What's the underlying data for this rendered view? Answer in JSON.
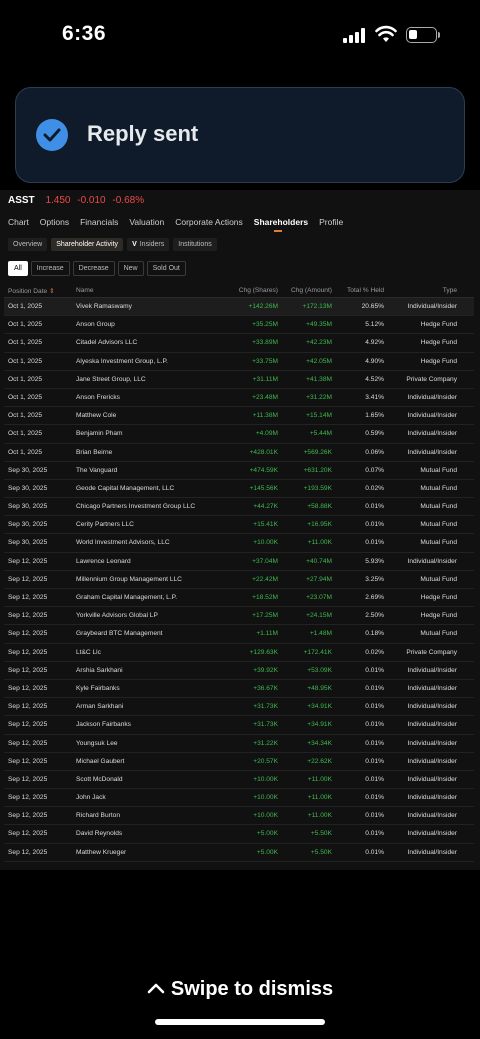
{
  "status_bar": {
    "time": "6:36"
  },
  "toast": {
    "text": "Reply sent"
  },
  "ticker": {
    "symbol": "ASST",
    "price": "1.450",
    "change": "-0.010",
    "change_pct": "-0.68%"
  },
  "main_tabs": [
    "Chart",
    "Options",
    "Financials",
    "Valuation",
    "Corporate Actions",
    "Shareholders",
    "Profile"
  ],
  "sub_tabs": {
    "overview": "Overview",
    "activity": "Shareholder Activity",
    "insiders": "Insiders",
    "insiders_badge": "V",
    "institutions": "Institutions"
  },
  "filters": [
    "All",
    "Increase",
    "Decrease",
    "New",
    "Sold Out"
  ],
  "table": {
    "headers": {
      "date": "Position Date",
      "date_sort": "⇕",
      "name": "Name",
      "shares": "Chg (Shares)",
      "amount": "Chg (Amount)",
      "held": "Total % Held",
      "type": "Type"
    },
    "rows": [
      {
        "date": "Oct 1, 2025",
        "name": "Vivek Ramaswamy",
        "shares": "+142.26M",
        "amount": "+172.13M",
        "held": "20.65%",
        "type": "Individual/Insider"
      },
      {
        "date": "Oct 1, 2025",
        "name": "Anson Group",
        "shares": "+35.25M",
        "amount": "+49.35M",
        "held": "5.12%",
        "type": "Hedge Fund"
      },
      {
        "date": "Oct 1, 2025",
        "name": "Citadel Advisors LLC",
        "shares": "+33.89M",
        "amount": "+42.23M",
        "held": "4.92%",
        "type": "Hedge Fund"
      },
      {
        "date": "Oct 1, 2025",
        "name": "Alyeska Investment Group, L.P.",
        "shares": "+33.75M",
        "amount": "+42.05M",
        "held": "4.90%",
        "type": "Hedge Fund"
      },
      {
        "date": "Oct 1, 2025",
        "name": "Jane Street Group, LLC",
        "shares": "+31.11M",
        "amount": "+41.38M",
        "held": "4.52%",
        "type": "Private Company"
      },
      {
        "date": "Oct 1, 2025",
        "name": "Anson Frericks",
        "shares": "+23.48M",
        "amount": "+31.22M",
        "held": "3.41%",
        "type": "Individual/Insider"
      },
      {
        "date": "Oct 1, 2025",
        "name": "Matthew Cole",
        "shares": "+11.38M",
        "amount": "+15.14M",
        "held": "1.65%",
        "type": "Individual/Insider"
      },
      {
        "date": "Oct 1, 2025",
        "name": "Benjamin Pham",
        "shares": "+4.09M",
        "amount": "+5.44M",
        "held": "0.59%",
        "type": "Individual/Insider"
      },
      {
        "date": "Oct 1, 2025",
        "name": "Brian Beirne",
        "shares": "+428.01K",
        "amount": "+569.26K",
        "held": "0.06%",
        "type": "Individual/Insider"
      },
      {
        "date": "Sep 30, 2025",
        "name": "The Vanguard",
        "shares": "+474.59K",
        "amount": "+631.20K",
        "held": "0.07%",
        "type": "Mutual Fund"
      },
      {
        "date": "Sep 30, 2025",
        "name": "Geode Capital Management, LLC",
        "shares": "+145.56K",
        "amount": "+193.59K",
        "held": "0.02%",
        "type": "Mutual Fund"
      },
      {
        "date": "Sep 30, 2025",
        "name": "Chicago Partners Investment Group LLC",
        "shares": "+44.27K",
        "amount": "+58.88K",
        "held": "0.01%",
        "type": "Mutual Fund"
      },
      {
        "date": "Sep 30, 2025",
        "name": "Cerity Partners LLC",
        "shares": "+15.41K",
        "amount": "+16.95K",
        "held": "0.01%",
        "type": "Mutual Fund"
      },
      {
        "date": "Sep 30, 2025",
        "name": "World Investment Advisors, LLC",
        "shares": "+10.00K",
        "amount": "+11.00K",
        "held": "0.01%",
        "type": "Mutual Fund"
      },
      {
        "date": "Sep 12, 2025",
        "name": "Lawrence Leonard",
        "shares": "+37.04M",
        "amount": "+40.74M",
        "held": "5.93%",
        "type": "Individual/Insider"
      },
      {
        "date": "Sep 12, 2025",
        "name": "Millennium Group Management LLC",
        "shares": "+22.42M",
        "amount": "+27.94M",
        "held": "3.25%",
        "type": "Mutual Fund"
      },
      {
        "date": "Sep 12, 2025",
        "name": "Graham Capital Management, L.P.",
        "shares": "+18.52M",
        "amount": "+23.07M",
        "held": "2.69%",
        "type": "Hedge Fund"
      },
      {
        "date": "Sep 12, 2025",
        "name": "Yorkville Advisors Global LP",
        "shares": "+17.25M",
        "amount": "+24.15M",
        "held": "2.50%",
        "type": "Hedge Fund"
      },
      {
        "date": "Sep 12, 2025",
        "name": "Graybeard BTC Management",
        "shares": "+1.11M",
        "amount": "+1.48M",
        "held": "0.18%",
        "type": "Mutual Fund"
      },
      {
        "date": "Sep 12, 2025",
        "name": "Lt&C Llc",
        "shares": "+129.63K",
        "amount": "+172.41K",
        "held": "0.02%",
        "type": "Private Company"
      },
      {
        "date": "Sep 12, 2025",
        "name": "Arshia Sarkhani",
        "shares": "+39.92K",
        "amount": "+53.09K",
        "held": "0.01%",
        "type": "Individual/Insider"
      },
      {
        "date": "Sep 12, 2025",
        "name": "Kyle Fairbanks",
        "shares": "+36.67K",
        "amount": "+48.95K",
        "held": "0.01%",
        "type": "Individual/Insider"
      },
      {
        "date": "Sep 12, 2025",
        "name": "Arman Sarkhani",
        "shares": "+31.73K",
        "amount": "+34.91K",
        "held": "0.01%",
        "type": "Individual/Insider"
      },
      {
        "date": "Sep 12, 2025",
        "name": "Jackson Fairbanks",
        "shares": "+31.73K",
        "amount": "+34.91K",
        "held": "0.01%",
        "type": "Individual/Insider"
      },
      {
        "date": "Sep 12, 2025",
        "name": "Youngsuk Lee",
        "shares": "+31.22K",
        "amount": "+34.34K",
        "held": "0.01%",
        "type": "Individual/Insider"
      },
      {
        "date": "Sep 12, 2025",
        "name": "Michael Gaubert",
        "shares": "+20.57K",
        "amount": "+22.62K",
        "held": "0.01%",
        "type": "Individual/Insider"
      },
      {
        "date": "Sep 12, 2025",
        "name": "Scott McDonald",
        "shares": "+10.00K",
        "amount": "+11.00K",
        "held": "0.01%",
        "type": "Individual/Insider"
      },
      {
        "date": "Sep 12, 2025",
        "name": "John Jack",
        "shares": "+10.00K",
        "amount": "+11.00K",
        "held": "0.01%",
        "type": "Individual/Insider"
      },
      {
        "date": "Sep 12, 2025",
        "name": "Richard Burton",
        "shares": "+10.00K",
        "amount": "+11.00K",
        "held": "0.01%",
        "type": "Individual/Insider"
      },
      {
        "date": "Sep 12, 2025",
        "name": "David Reynolds",
        "shares": "+5.00K",
        "amount": "+5.50K",
        "held": "0.01%",
        "type": "Individual/Insider"
      },
      {
        "date": "Sep 12, 2025",
        "name": "Matthew Krueger",
        "shares": "+5.00K",
        "amount": "+5.50K",
        "held": "0.01%",
        "type": "Individual/Insider"
      }
    ]
  },
  "bottom": {
    "swipe_text": "Swipe to dismiss"
  },
  "colors": {
    "positive": "#3fb950",
    "negative": "#ea4a4a",
    "accent": "#e07b39",
    "check": "#3f8fe6"
  },
  "icons": {
    "toast": "checkmark-circle-icon",
    "swipe": "chevron-up-icon"
  }
}
